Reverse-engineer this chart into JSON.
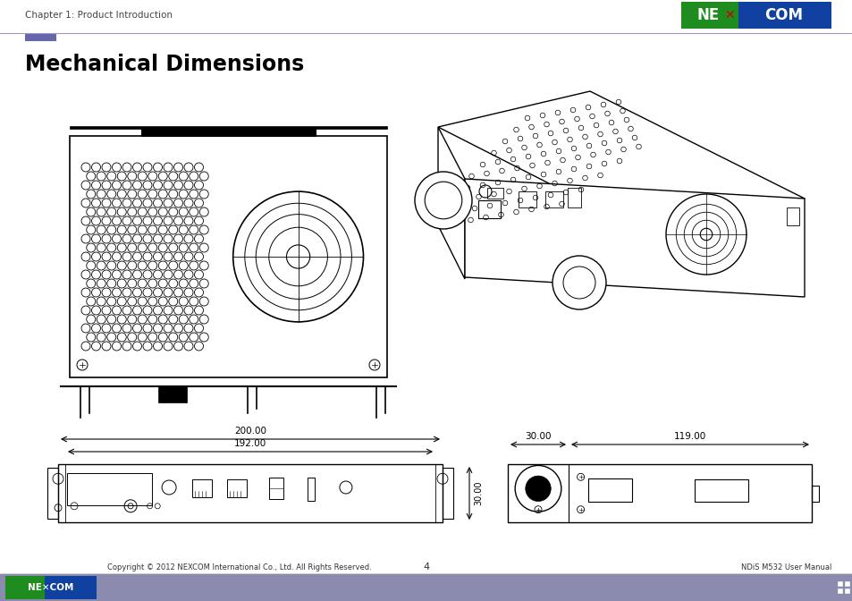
{
  "title": "Mechanical Dimensions",
  "header_text": "Chapter 1: Product Introduction",
  "footer_left": "Copyright © 2012 NEXCOM International Co., Ltd. All Rights Reserved.",
  "footer_center": "4",
  "footer_right": "NDiS M532 User Manual",
  "dim_200": "200.00",
  "dim_192": "192.00",
  "dim_30_vert": "30.00",
  "dim_30_horiz": "30.00",
  "dim_119": "119.00",
  "bg_color": "#ffffff",
  "footer_bar_color": "#8B8BB0",
  "header_line_color": "#9999cc",
  "title_color": "#000000",
  "logo_green": "#1e8c1e",
  "logo_blue": "#1040a0",
  "accent_color": "#6666aa",
  "line_color": "#000000"
}
